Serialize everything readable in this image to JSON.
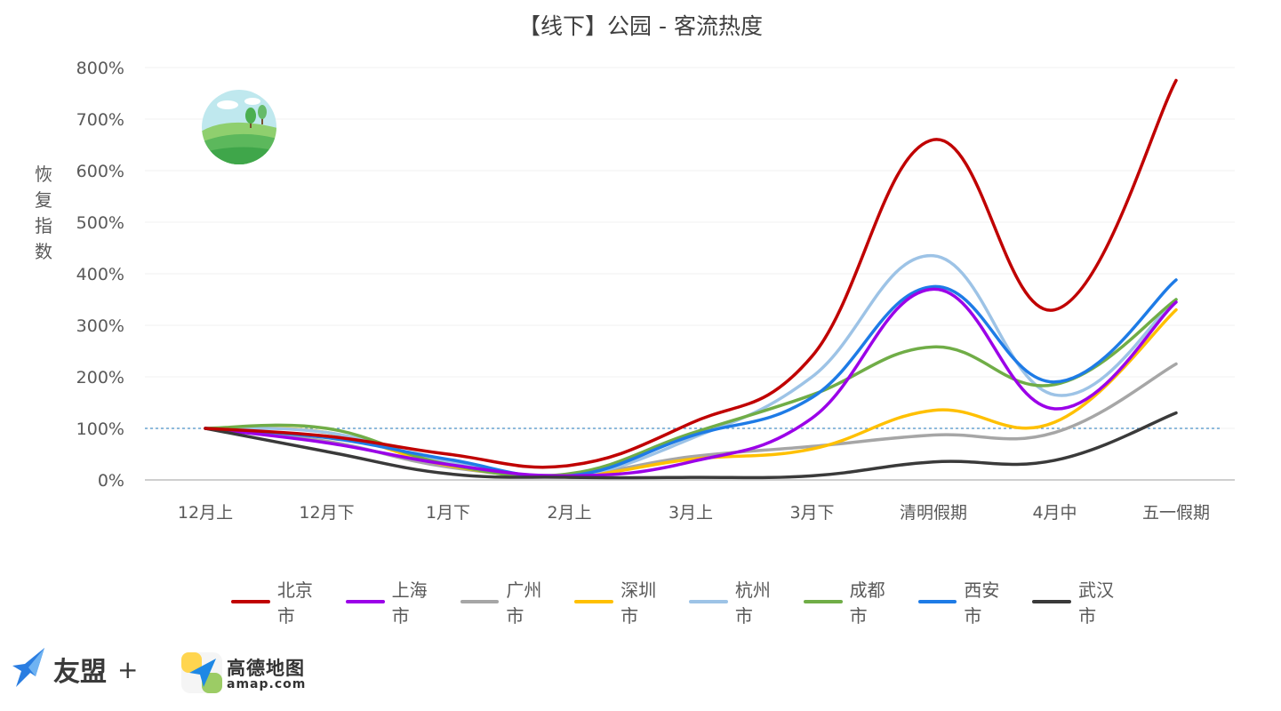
{
  "chart_data": {
    "type": "line",
    "title": "【线下】公园 - 客流热度",
    "ylabel": "恢复指数",
    "xlabel": "",
    "categories": [
      "12月上",
      "12月下",
      "1月下",
      "2月上",
      "3月上",
      "3月下",
      "清明假期",
      "4月中",
      "五一假期"
    ],
    "ylim": [
      0,
      800
    ],
    "yticks": [
      0,
      100,
      200,
      300,
      400,
      500,
      600,
      700,
      800
    ],
    "ytick_labels": [
      "0%",
      "100%",
      "200%",
      "300%",
      "400%",
      "500%",
      "600%",
      "700%",
      "800%"
    ],
    "reference_line": 100,
    "grid": true,
    "legend_position": "bottom",
    "series": [
      {
        "name": "北京市",
        "color": "#c00000",
        "values": [
          100,
          85,
          50,
          28,
          110,
          240,
          660,
          330,
          775
        ]
      },
      {
        "name": "上海市",
        "color": "#9b00e8",
        "values": [
          100,
          72,
          30,
          8,
          35,
          120,
          370,
          138,
          345
        ]
      },
      {
        "name": "广州市",
        "color": "#a6a6a6",
        "values": [
          100,
          75,
          25,
          10,
          45,
          65,
          87,
          92,
          225
        ]
      },
      {
        "name": "深圳市",
        "color": "#ffc000",
        "values": [
          100,
          92,
          28,
          8,
          40,
          60,
          135,
          112,
          330
        ]
      },
      {
        "name": "杭州市",
        "color": "#9dc3e6",
        "values": [
          100,
          92,
          35,
          8,
          80,
          200,
          435,
          165,
          350
        ]
      },
      {
        "name": "成都市",
        "color": "#70ad47",
        "values": [
          100,
          100,
          30,
          12,
          90,
          165,
          258,
          185,
          350
        ]
      },
      {
        "name": "西安市",
        "color": "#1e7be6",
        "values": [
          100,
          82,
          40,
          8,
          85,
          160,
          375,
          190,
          388
        ]
      },
      {
        "name": "武汉市",
        "color": "#3a3a3a",
        "values": [
          100,
          55,
          12,
          5,
          5,
          8,
          35,
          38,
          130
        ]
      }
    ]
  },
  "logos": {
    "umeng": {
      "icon": "umeng-bird-icon",
      "text": "友盟",
      "plus": "+"
    },
    "amap": {
      "icon": "amap-logo-icon",
      "text_cn": "高德地图",
      "text_en": "amap.com"
    }
  },
  "decoration": {
    "icon": "park-landscape-icon"
  }
}
